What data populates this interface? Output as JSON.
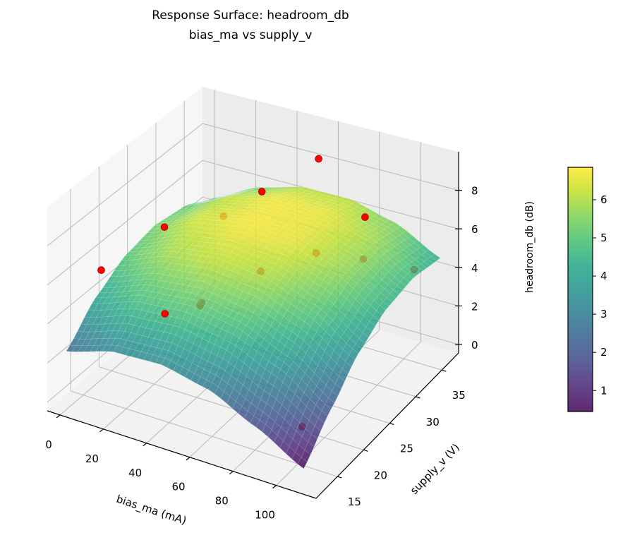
{
  "chart_data": {
    "type": "surface3d",
    "title": "Response Surface: headroom_db",
    "subtitle": "bias_ma vs supply_v",
    "xlabel": "bias_ma (mA)",
    "ylabel": "supply_v (V)",
    "zlabel": "headroom_db (dB)",
    "xlim": [
      -5.9,
      118.4
    ],
    "ylim": [
      10.9,
      38.2
    ],
    "zlim": [
      -0.44,
      10.0
    ],
    "x_ticks": [
      0,
      20,
      40,
      60,
      80,
      100
    ],
    "y_ticks": [
      15,
      20,
      25,
      30,
      35
    ],
    "z_ticks": [
      0,
      2,
      4,
      6,
      8
    ],
    "grid": true,
    "view": {
      "elevation": 30,
      "azimuth": -60
    },
    "surface": {
      "colormap": "viridis",
      "alpha": 0.8,
      "x": [
        0,
        22,
        44,
        66,
        88,
        110
      ],
      "y": [
        12,
        17.2,
        22.4,
        27.6,
        32.8,
        38
      ],
      "z": [
        [
          2.55,
          3.28,
          3.39,
          2.88,
          1.75,
          0.45
        ],
        [
          4.06,
          4.89,
          5.11,
          4.71,
          3.69,
          2.05
        ],
        [
          4.98,
          5.92,
          6.24,
          5.94,
          5.03,
          3.5
        ],
        [
          5.3,
          6.35,
          6.78,
          6.59,
          5.78,
          4.36
        ],
        [
          5.04,
          6.19,
          6.73,
          6.64,
          5.94,
          4.62
        ],
        [
          4.18,
          5.44,
          6.08,
          6.11,
          5.51,
          4.3
        ]
      ]
    },
    "points": {
      "color": "#ff0000",
      "data": [
        {
          "x": 11,
          "y": 14,
          "z": 6.6
        },
        {
          "x": 18,
          "y": 22.6,
          "z": 7.0
        },
        {
          "x": 23,
          "y": 31.3,
          "z": 5.6
        },
        {
          "x": 49,
          "y": 28.4,
          "z": 8.4
        },
        {
          "x": 51,
          "y": 38,
          "z": 7.8
        },
        {
          "x": 87,
          "y": 32.8,
          "z": 7.1
        },
        {
          "x": 107,
          "y": 34.2,
          "z": 4.6
        },
        {
          "x": 37,
          "y": 15.4,
          "z": 4.9
        },
        {
          "x": 43,
          "y": 19.7,
          "z": 4.6
        },
        {
          "x": 39,
          "y": 21,
          "z": 4.0
        },
        {
          "x": 56,
          "y": 25.5,
          "z": 5.2
        },
        {
          "x": 71,
          "y": 29.9,
          "z": 5.5
        },
        {
          "x": 90,
          "y": 31.3,
          "z": 5.4
        },
        {
          "x": 101,
          "y": 15.4,
          "z": 1.35
        }
      ]
    },
    "colorbar": {
      "label": "headroom_db (dB)",
      "range": [
        0.45,
        6.85
      ],
      "ticks": [
        1,
        2,
        3,
        4,
        5,
        6
      ]
    }
  }
}
